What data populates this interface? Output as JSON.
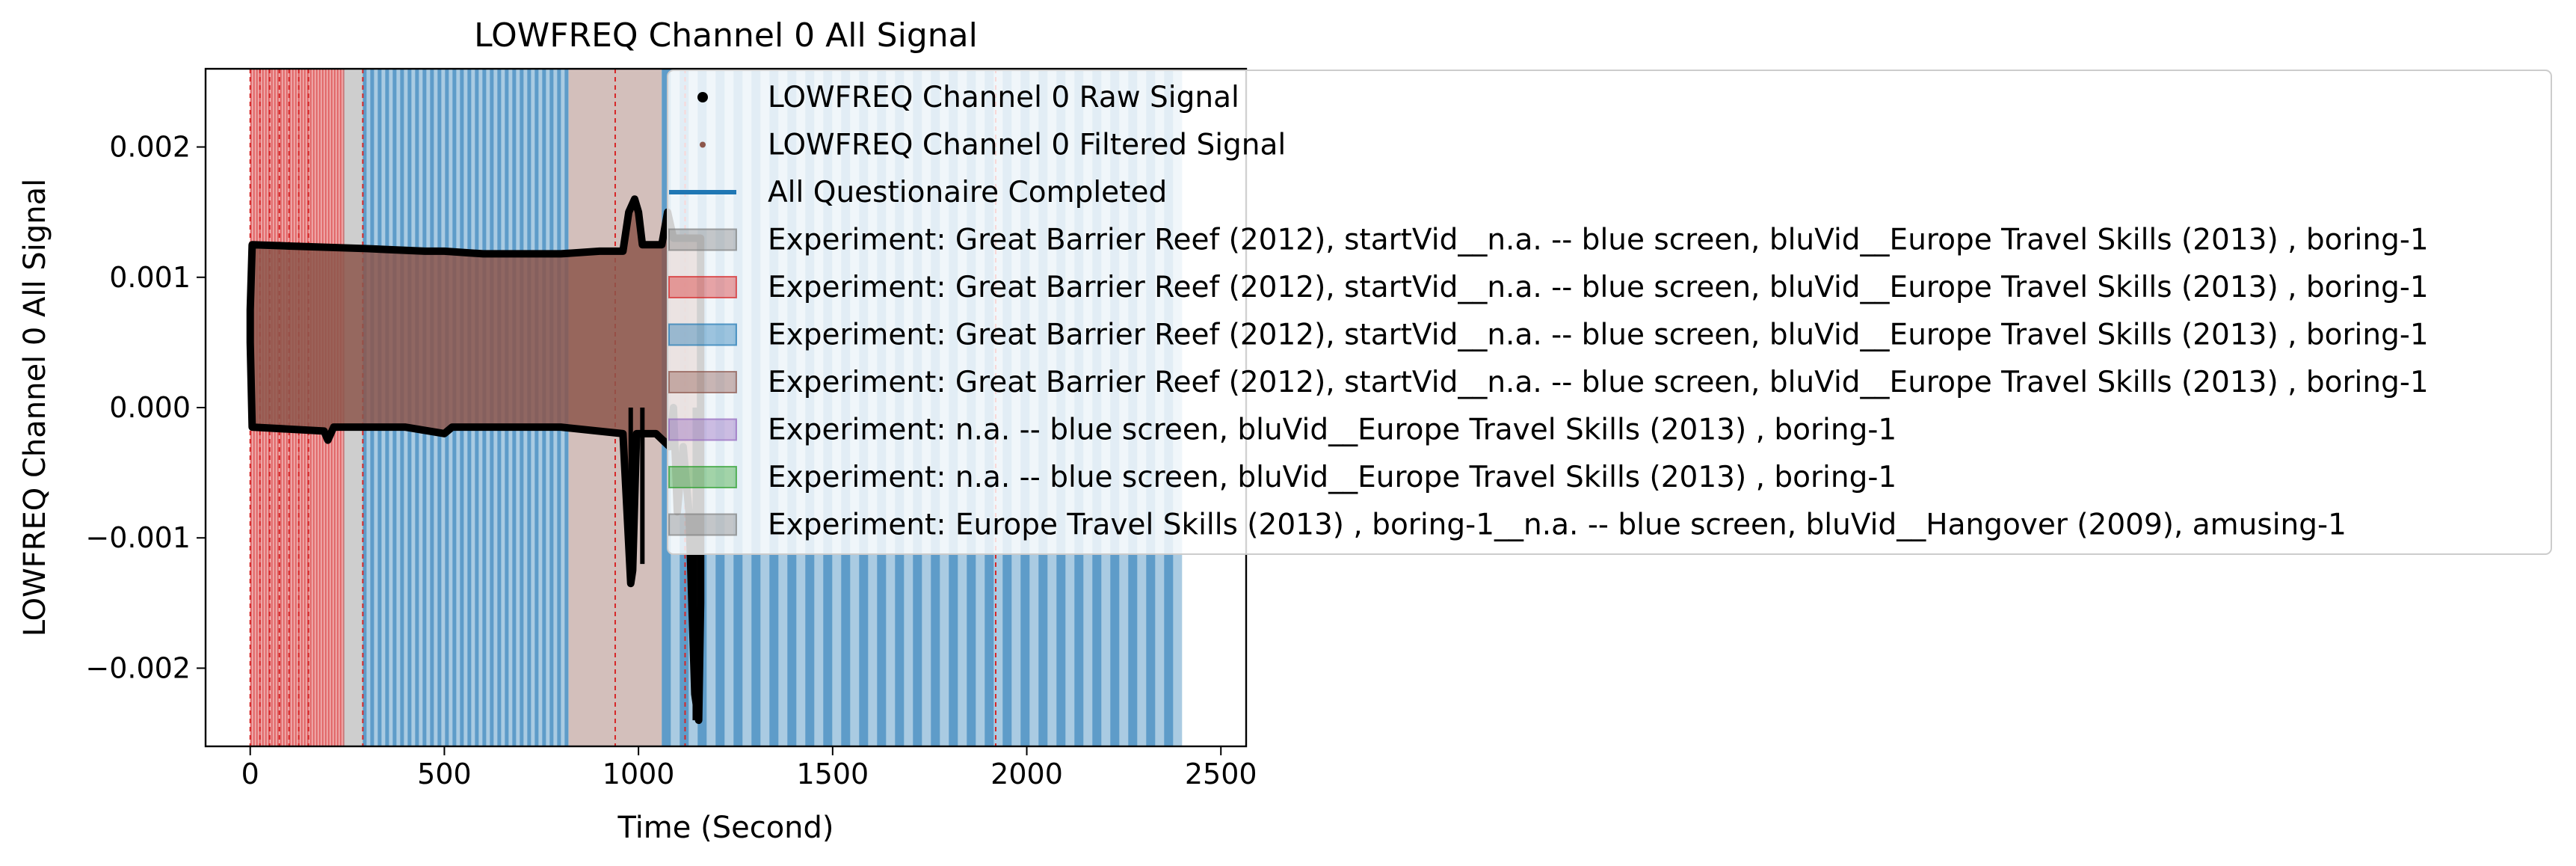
{
  "chart_data": {
    "type": "line",
    "title": "LOWFREQ Channel 0 All Signal",
    "xlabel": "Time (Second)",
    "ylabel": "LOWFREQ Channel 0 All Signal",
    "xlim": [
      -115,
      2565
    ],
    "ylim": [
      -0.0026,
      0.0026
    ],
    "xticks": [
      0,
      500,
      1000,
      1500,
      2000,
      2500
    ],
    "xtick_labels": [
      "0",
      "500",
      "1000",
      "1500",
      "2000",
      "2500"
    ],
    "yticks": [
      -0.002,
      -0.001,
      0.0,
      0.001,
      0.002
    ],
    "ytick_labels": [
      "−0.002",
      "−0.001",
      "0.000",
      "0.001",
      "0.002"
    ],
    "grid": false,
    "legend_placement": "upper-right, extending beyond axes",
    "legend": [
      {
        "label": "LOWFREQ Channel 0 Raw Signal",
        "kind": "marker",
        "color": "#000000"
      },
      {
        "label": "LOWFREQ Channel 0 Filtered Signal",
        "kind": "small-marker",
        "color": "#8c564b"
      },
      {
        "label": "All Questionaire Completed",
        "kind": "line",
        "color": "#1f77b4"
      },
      {
        "label": "Experiment: Great Barrier Reef (2012), startVid__n.a. -- blue screen, bluVid__Europe Travel Skills (2013) , boring-1",
        "kind": "patch",
        "color": "#7f7f7f"
      },
      {
        "label": "Experiment: Great Barrier Reef (2012), startVid__n.a. -- blue screen, bluVid__Europe Travel Skills (2013) , boring-1",
        "kind": "patch",
        "color": "#d62728"
      },
      {
        "label": "Experiment: Great Barrier Reef (2012), startVid__n.a. -- blue screen, bluVid__Europe Travel Skills (2013) , boring-1",
        "kind": "patch",
        "color": "#1f77b4"
      },
      {
        "label": "Experiment: Great Barrier Reef (2012), startVid__n.a. -- blue screen, bluVid__Europe Travel Skills (2013) , boring-1",
        "kind": "patch",
        "color": "#8c564b"
      },
      {
        "label": "Experiment: n.a. -- blue screen, bluVid__Europe Travel Skills (2013) , boring-1",
        "kind": "patch",
        "color": "#9467bd"
      },
      {
        "label": "Experiment: n.a. -- blue screen, bluVid__Europe Travel Skills (2013) , boring-1",
        "kind": "patch",
        "color": "#2ca02c"
      },
      {
        "label": "Experiment: Europe Travel Skills (2013) , boring-1__n.a. -- blue screen, bluVid__Hangover (2009), amusing-1",
        "kind": "patch",
        "color": "#7f7f7f"
      }
    ],
    "signal": {
      "x_range": [
        0,
        1160
      ],
      "upper_envelope": [
        [
          0,
          0.00075
        ],
        [
          5,
          0.00125
        ],
        [
          100,
          0.00124
        ],
        [
          300,
          0.00122
        ],
        [
          450,
          0.0012
        ],
        [
          500,
          0.0012
        ],
        [
          600,
          0.00118
        ],
        [
          700,
          0.00118
        ],
        [
          800,
          0.00118
        ],
        [
          900,
          0.0012
        ],
        [
          960,
          0.0012
        ],
        [
          975,
          0.0015
        ],
        [
          990,
          0.0016
        ],
        [
          1000,
          0.0015
        ],
        [
          1010,
          0.00125
        ],
        [
          1060,
          0.00125
        ],
        [
          1075,
          0.0015
        ],
        [
          1090,
          0.0013
        ],
        [
          1160,
          0.0013
        ]
      ],
      "lower_envelope": [
        [
          0,
          0.0005
        ],
        [
          5,
          -0.00015
        ],
        [
          190,
          -0.00018
        ],
        [
          200,
          -0.00025
        ],
        [
          215,
          -0.00015
        ],
        [
          400,
          -0.00015
        ],
        [
          500,
          -0.0002
        ],
        [
          520,
          -0.00015
        ],
        [
          800,
          -0.00015
        ],
        [
          960,
          -0.0002
        ],
        [
          980,
          -0.00135
        ],
        [
          985,
          -0.00125
        ],
        [
          995,
          -0.0002
        ],
        [
          1045,
          -0.0002
        ],
        [
          1080,
          -0.0003
        ],
        [
          1090,
          0.0
        ],
        [
          1100,
          -0.0008
        ],
        [
          1115,
          -0.0003
        ],
        [
          1130,
          -0.0008
        ],
        [
          1145,
          -0.0022
        ],
        [
          1155,
          -0.0024
        ],
        [
          1160,
          -0.0015
        ]
      ],
      "dips": [
        [
          980,
          -0.00135
        ],
        [
          1010,
          -0.0012
        ],
        [
          1145,
          -0.0024
        ]
      ]
    },
    "shaded_regions": [
      {
        "start": 0,
        "end": 240,
        "color": "#d62728",
        "style": "thin vertical stripes"
      },
      {
        "start": 240,
        "end": 290,
        "color": "#7f7f7f"
      },
      {
        "start": 290,
        "end": 820,
        "color": "#1f77b4",
        "style": "blue stripes over maroon"
      },
      {
        "start": 820,
        "end": 1060,
        "color": "#8c564b"
      },
      {
        "start": 1060,
        "end": 2400,
        "color": "#1f77b4",
        "style": "blue stripes over grey"
      }
    ],
    "vertical_lines_x": [
      0,
      25,
      50,
      75,
      100,
      125,
      150,
      290,
      940,
      1120,
      1920
    ]
  }
}
